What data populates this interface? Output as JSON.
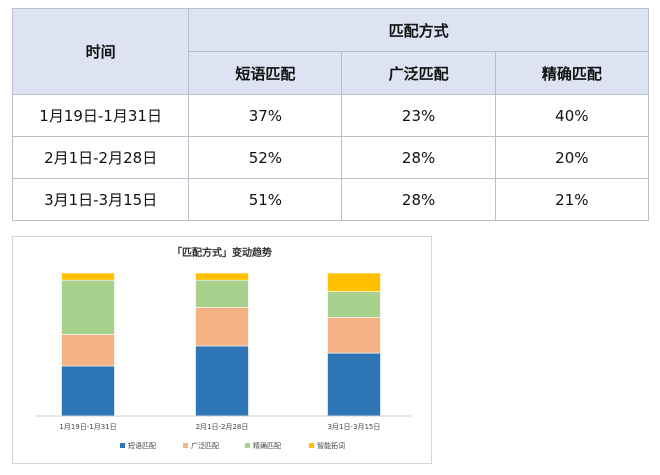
{
  "table": {
    "time_header": "时间",
    "group_header": "匹配方式",
    "columns": [
      "短语匹配",
      "广泛匹配",
      "精确匹配"
    ],
    "rows": [
      {
        "time": "1月19日-1月31日",
        "values": [
          "37%",
          "23%",
          "40%"
        ]
      },
      {
        "time": "2月1日-2月28日",
        "values": [
          "52%",
          "28%",
          "20%"
        ]
      },
      {
        "time": "3月1日-3月15日",
        "values": [
          "51%",
          "28%",
          "21%"
        ]
      }
    ]
  },
  "chart_data": {
    "type": "bar",
    "stacked": true,
    "title": "「匹配方式」变动趋势",
    "categories": [
      "1月19日-1月31日",
      "2月1日-2月28日",
      "3月1日-3月15日"
    ],
    "series": [
      {
        "name": "短语匹配",
        "color": "#2e75b6",
        "values": [
          35,
          49,
          44
        ]
      },
      {
        "name": "广泛匹配",
        "color": "#f4b183",
        "values": [
          22,
          27,
          25
        ]
      },
      {
        "name": "精确匹配",
        "color": "#a9d18e",
        "values": [
          38,
          19,
          18
        ]
      },
      {
        "name": "智能拓词",
        "color": "#ffc000",
        "values": [
          5,
          5,
          13
        ]
      }
    ],
    "ylim": [
      0,
      100
    ],
    "grid": false,
    "legend": "bottom"
  }
}
